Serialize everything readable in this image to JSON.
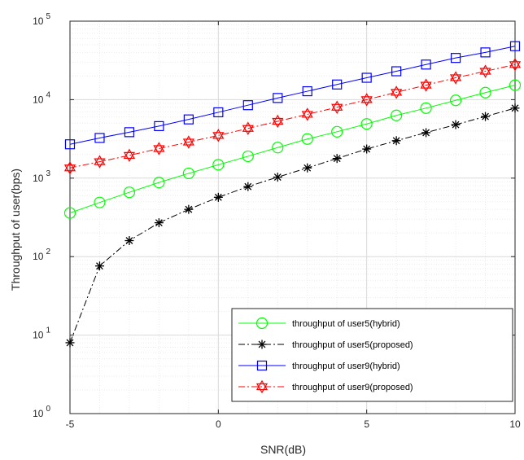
{
  "chart_data": {
    "type": "line",
    "xlabel": "SNR(dB)",
    "ylabel": "Throughput of user(bps)",
    "xlim": [
      -5,
      10
    ],
    "ylim": [
      1,
      100000
    ],
    "yscale": "log",
    "grid": true,
    "legend_position": "bottom-right",
    "x_ticks": [
      -5,
      0,
      5,
      10
    ],
    "x_tick_labels": [
      "-5",
      "0",
      "5",
      "10"
    ],
    "y_ticks": [
      1,
      10,
      100,
      1000,
      10000,
      100000
    ],
    "y_tick_bases": [
      "10",
      "10",
      "10",
      "10",
      "10",
      "10"
    ],
    "y_tick_exponents": [
      "0",
      "1",
      "2",
      "3",
      "4",
      "5"
    ],
    "x": [
      -5,
      -4,
      -3,
      -2,
      -1,
      0,
      1,
      2,
      3,
      4,
      5,
      6,
      7,
      8,
      9,
      10
    ],
    "series": [
      {
        "name": "throughput of user5(hybrid)",
        "color": "#00ff00",
        "line_style": "solid",
        "marker": "circle",
        "values": [
          360,
          490,
          660,
          880,
          1150,
          1480,
          1900,
          2450,
          3150,
          3900,
          4900,
          6300,
          7800,
          9800,
          12300,
          15300
        ]
      },
      {
        "name": "throughput of user5(proposed)",
        "color": "#000000",
        "line_style": "dashdot",
        "marker": "asterisk",
        "values": [
          8,
          76,
          160,
          270,
          400,
          570,
          780,
          1030,
          1350,
          1780,
          2350,
          3000,
          3800,
          4800,
          6100,
          7800
        ]
      },
      {
        "name": "throughput of user9(hybrid)",
        "color": "#0000ff",
        "line_style": "solid",
        "marker": "square",
        "values": [
          2700,
          3250,
          3850,
          4600,
          5600,
          6900,
          8500,
          10500,
          12800,
          15600,
          19000,
          23000,
          28000,
          34000,
          40000,
          48000
        ]
      },
      {
        "name": "throughput of user9(proposed)",
        "color": "#ff0000",
        "line_style": "dashdot",
        "marker": "hexagram",
        "values": [
          1350,
          1620,
          1950,
          2380,
          2880,
          3500,
          4300,
          5300,
          6500,
          8000,
          10000,
          12400,
          15300,
          19000,
          23000,
          28000
        ]
      }
    ]
  }
}
